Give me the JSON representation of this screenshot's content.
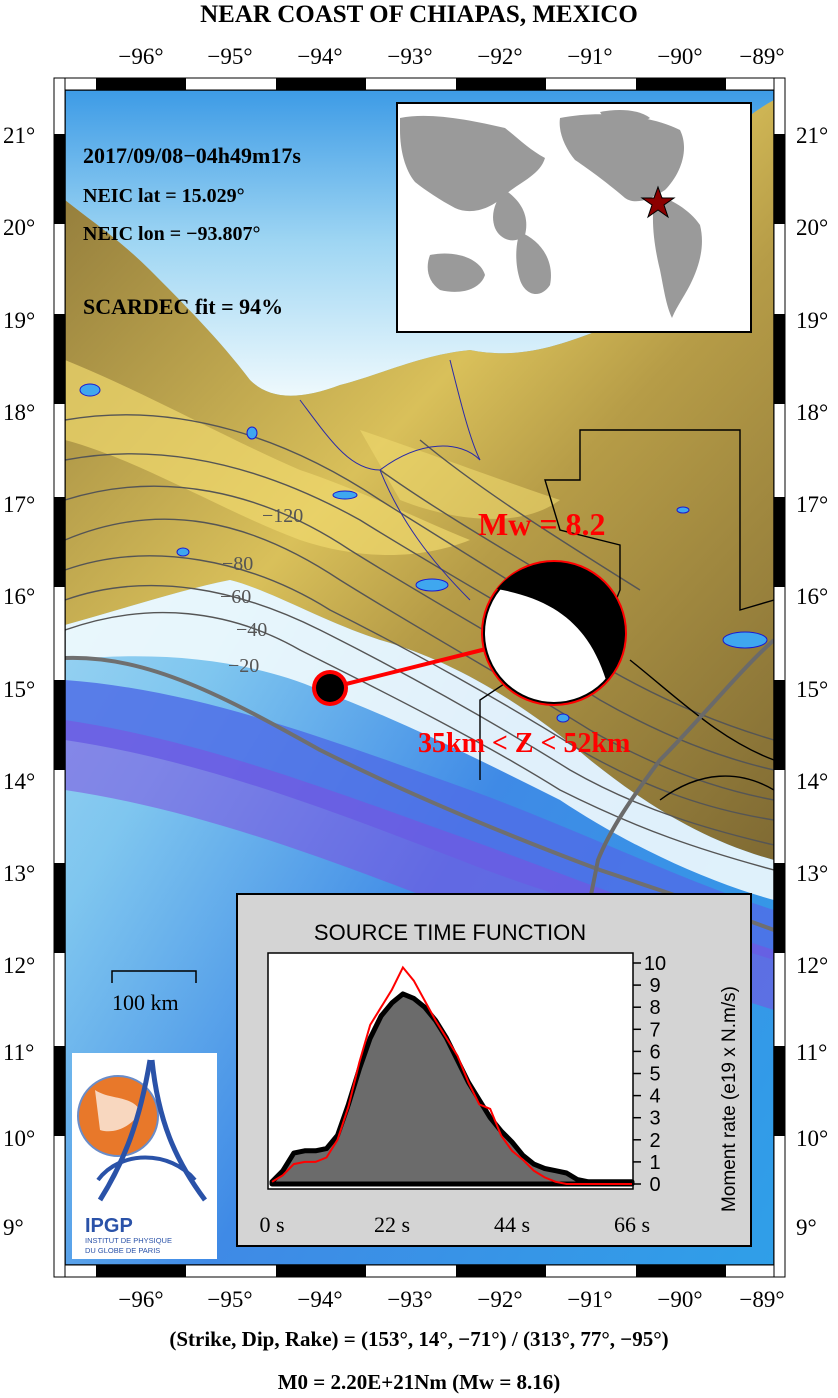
{
  "title": "NEAR COAST OF CHIAPAS, MEXICO",
  "lon_ticks": [
    "−96°",
    "−95°",
    "−94°",
    "−93°",
    "−92°",
    "−91°",
    "−90°",
    "−89°"
  ],
  "lat_ticks": [
    "21°",
    "20°",
    "19°",
    "18°",
    "17°",
    "16°",
    "15°",
    "14°",
    "13°",
    "12°",
    "11°",
    "10°",
    "9°"
  ],
  "event": {
    "datetime": "2017/09/08−04h49m17s",
    "neic_lat": "NEIC lat  = 15.029°",
    "neic_lon": "NEIC lon = −93.807°",
    "fit": "SCARDEC fit = 94%",
    "magnitude_label": "Mw = 8.2",
    "depth_label": "35km < Z <  52km"
  },
  "slab_contours": [
    "−20",
    "−40",
    "−60",
    "−80",
    "−120"
  ],
  "scale_bar": "100 km",
  "logo": {
    "name": "IPGP",
    "line1": "INSTITUT DE PHYSIQUE",
    "line2": "DU GLOBE DE PARIS"
  },
  "stf": {
    "title": "SOURCE TIME FUNCTION",
    "ylabel": "Moment rate (e19 x N.m/s)",
    "x_ticks": [
      "0 s",
      "22 s",
      "44 s",
      "66 s"
    ],
    "y_ticks": [
      "0",
      "1",
      "2",
      "3",
      "4",
      "5",
      "6",
      "7",
      "8",
      "9",
      "10"
    ]
  },
  "chart_data": {
    "type": "area",
    "title": "SOURCE TIME FUNCTION",
    "xlabel": "",
    "ylabel": "Moment rate (e19 x N.m/s)",
    "xlim": [
      0,
      66
    ],
    "ylim": [
      0,
      10
    ],
    "series": [
      {
        "x": [
          0,
          2,
          4,
          6,
          8,
          10,
          12,
          14,
          16,
          18,
          20,
          22,
          24,
          26,
          28,
          30,
          32,
          34,
          36,
          38,
          40,
          42,
          44,
          46,
          48,
          50,
          52,
          54,
          56,
          58,
          60,
          62,
          64,
          66
        ],
        "values": [
          0.1,
          0.6,
          1.4,
          1.5,
          1.5,
          1.6,
          2.2,
          3.6,
          5.2,
          6.6,
          7.6,
          8.2,
          8.6,
          8.4,
          8.0,
          7.4,
          6.6,
          5.6,
          4.6,
          3.8,
          3.0,
          2.4,
          1.9,
          1.3,
          0.9,
          0.7,
          0.6,
          0.5,
          0.2,
          0.1,
          0.1,
          0.1,
          0.1,
          0.1
        ]
      },
      {
        "x": [
          0,
          2,
          4,
          6,
          8,
          10,
          12,
          14,
          16,
          18,
          20,
          22,
          24,
          26,
          28,
          30,
          32,
          34,
          36,
          38,
          40,
          42,
          44,
          46,
          48,
          50,
          52,
          54,
          56,
          58,
          60,
          62,
          64,
          66
        ],
        "values": [
          0.1,
          0.4,
          0.9,
          1.0,
          1.0,
          1.2,
          2.0,
          3.5,
          5.5,
          7.2,
          8.0,
          8.8,
          9.8,
          9.2,
          8.3,
          7.4,
          6.6,
          5.8,
          4.6,
          3.6,
          3.4,
          2.2,
          1.5,
          1.1,
          0.6,
          0.3,
          0.1,
          0.0,
          0.0,
          0.0,
          0.0,
          0.0,
          0.0,
          0.0
        ]
      }
    ]
  },
  "mechanism": "(Strike, Dip, Rake) = (153°, 14°, −71°) / (313°, 77°, −95°)",
  "moment": "M0 = 2.20E+21Nm  (Mw = 8.16)",
  "colors": {
    "land": "#8b7539",
    "highland": "#e8d26a",
    "sea_shallow": "#f2fbfd",
    "sea_mid": "#8fd0f0",
    "sea_deep": "#3a6fe0",
    "accent": "#ff0000",
    "stf_fill": "#6b6b6b",
    "stf_bg": "#d4d4d4"
  }
}
